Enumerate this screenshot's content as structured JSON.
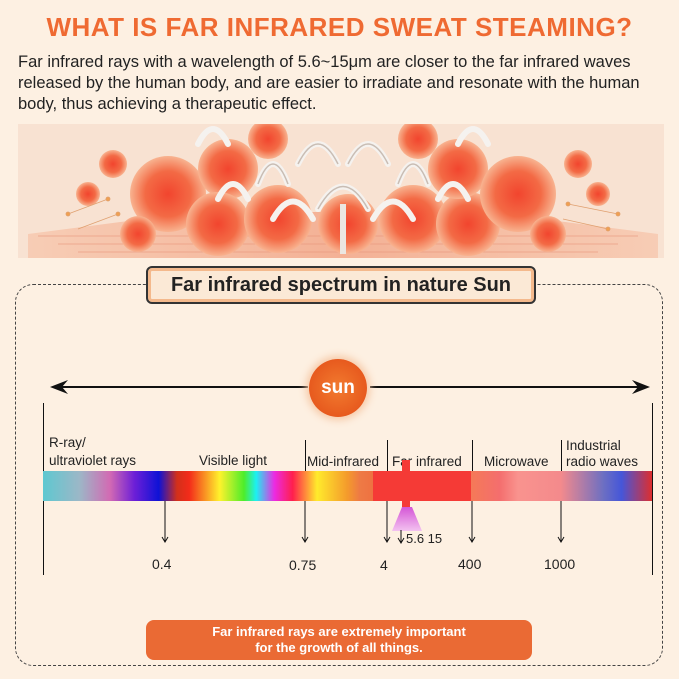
{
  "title": "WHAT IS FAR INFRARED SWEAT STEAMING?",
  "intro": "Far infrared rays with a wavelength of 5.6~15μm are closer to the far infrared waves released by the human body, and are easier to irradiate and resonate with the human body, thus achieving a therapeutic effect.",
  "spectrum_title": "Far infrared spectrum in nature Sun",
  "sun_label": "sun",
  "bands": {
    "rray_line1": "R-ray/",
    "rray_line2": "ultraviolet rays",
    "visible": "Visible light",
    "mid_ir": "Mid-infrared",
    "far_ir": "Far infrared",
    "microwave": "Microwave",
    "industrial_line1": "Industrial",
    "industrial_line2": "radio waves"
  },
  "ticks": {
    "t1": "0.4",
    "t2": "0.75",
    "t3": "4",
    "t4": "400",
    "t5": "1000",
    "far_ir_range": "5.6 15"
  },
  "footer_line1": "Far infrared rays are extremely important",
  "footer_line2": "for the growth of all things.",
  "colors": {
    "accent": "#ef6a32",
    "background": "#fdf0e2",
    "footer_bg": "#ea6a34"
  }
}
